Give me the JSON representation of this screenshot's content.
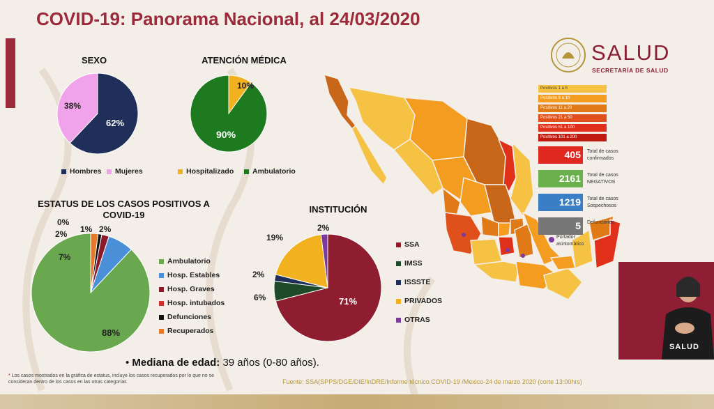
{
  "title": "COVID-19: Panorama Nacional, al 24/03/2020",
  "brand": {
    "name": "SALUD",
    "subtitle": "SECRETARÍA DE SALUD"
  },
  "colors": {
    "accent": "#9b2a3a",
    "gold": "#b4963a"
  },
  "chart_data": [
    {
      "type": "pie",
      "title": "SEXO",
      "categories": [
        "Hombres",
        "Mujeres"
      ],
      "values": [
        62,
        38
      ],
      "colors": [
        "#1f2f5a",
        "#f0a3ea"
      ],
      "value_labels": [
        "62%",
        "38%"
      ],
      "legend_position": "bottom"
    },
    {
      "type": "pie",
      "title": "ATENCIÓN MÉDICA",
      "categories": [
        "Hospitalizado",
        "Ambulatorio"
      ],
      "values": [
        10,
        90
      ],
      "colors": [
        "#f2b220",
        "#1d7a1f"
      ],
      "value_labels": [
        "10%",
        "90%"
      ],
      "legend_position": "bottom"
    },
    {
      "type": "pie",
      "title": "ESTATUS DE LOS CASOS POSITIVOS A COVID-19",
      "categories": [
        "Ambulatorio",
        "Hosp. Estables",
        "Hosp. Graves",
        "Hosp. intubados",
        "Defunciones",
        "Recuperados"
      ],
      "values": [
        88,
        7,
        2,
        0,
        1,
        2
      ],
      "colors": [
        "#6aa84f",
        "#4a90d9",
        "#8b1a2a",
        "#d03030",
        "#111111",
        "#e8782a"
      ],
      "value_labels": [
        "88%",
        "7%",
        "2%",
        "0%",
        "1%",
        "2%"
      ],
      "legend_position": "right"
    },
    {
      "type": "pie",
      "title": "INSTITUCIÓN",
      "categories": [
        "SSA",
        "IMSS",
        "ISSSTE",
        "PRIVADOS",
        "OTRAS"
      ],
      "values": [
        71,
        6,
        2,
        19,
        2
      ],
      "colors": [
        "#8e1d2f",
        "#1f4a2a",
        "#1f2f5a",
        "#f2b220",
        "#7a3a9a"
      ],
      "value_labels": [
        "71%",
        "6%",
        "2%",
        "19%",
        "2%"
      ],
      "legend_position": "right"
    }
  ],
  "map_legend": [
    {
      "label": "Positivos 1 a 5",
      "color": "#f6c244"
    },
    {
      "label": "Positivos 6 a 10",
      "color": "#f39c1f"
    },
    {
      "label": "Positivos 11 a 20",
      "color": "#e07a16"
    },
    {
      "label": "Positivos 21 a 50",
      "color": "#e0501a"
    },
    {
      "label": "Positivos 51 a 100",
      "color": "#e0301a"
    },
    {
      "label": "Positivos 101 a 200",
      "color": "#c01a10"
    }
  ],
  "stats": [
    {
      "value": "405",
      "label_lines": [
        "Total de casos",
        "confirmados"
      ],
      "color": "#e02820"
    },
    {
      "value": "2161",
      "label_lines": [
        "Total de casos",
        "NEGATIVOS"
      ],
      "color": "#6ab04c"
    },
    {
      "value": "1219",
      "label_lines": [
        "Total de casos",
        "Sospechosos"
      ],
      "color": "#3a7ec6"
    },
    {
      "value": "5",
      "label_lines": [
        "Defunciones"
      ],
      "color": "#777777"
    }
  ],
  "portador": {
    "label_lines": [
      "Portador",
      "asintomático"
    ],
    "color": "#7a3aa0"
  },
  "median": {
    "label": "Mediana de edad:",
    "value": "39 años (0-80 años)."
  },
  "footnote": "Los casos mostrados en la gráfica de estatus, incluye los casos recuperados por lo que no se consideran dentro de los casos en las otras categorías",
  "source": "Fuente: SSA(SPPS/DGE/DIE/InDRE/Informe técnico.COVID-19 /Mexico-24 de marzo 2020 (corte 13:00hrs)",
  "interpreter": {
    "logo_text": "SALUD"
  }
}
